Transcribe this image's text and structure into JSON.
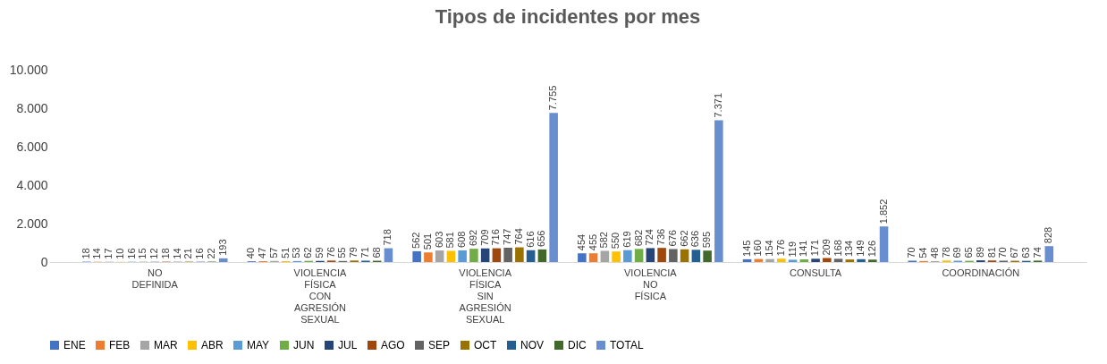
{
  "chart_data": {
    "type": "bar",
    "title": "Tipos de incidentes por mes",
    "categories": [
      "NO DEFINIDA",
      "VIOLENCIA FÍSICA CON AGRESIÓN SEXUAL",
      "VIOLENCIA FÍSICA SIN AGRESIÓN SEXUAL",
      "VIOLENCIA NO FÍSICA",
      "CONSULTA",
      "COORDINACIÓN"
    ],
    "series": [
      {
        "name": "ENE",
        "color": "#4472c4",
        "values": [
          18,
          40,
          562,
          454,
          145,
          70
        ],
        "value_labels": [
          "18",
          "40",
          "562",
          "454",
          "145",
          "70"
        ]
      },
      {
        "name": "FEB",
        "color": "#ed7d31",
        "values": [
          14,
          47,
          501,
          455,
          160,
          54
        ],
        "value_labels": [
          "14",
          "47",
          "501",
          "455",
          "160",
          "54"
        ]
      },
      {
        "name": "MAR",
        "color": "#a5a5a5",
        "values": [
          17,
          57,
          603,
          582,
          154,
          48
        ],
        "value_labels": [
          "17",
          "57",
          "603",
          "582",
          "154",
          "48"
        ]
      },
      {
        "name": "ABR",
        "color": "#ffc000",
        "values": [
          10,
          51,
          581,
          550,
          176,
          78
        ],
        "value_labels": [
          "10",
          "51",
          "581",
          "550",
          "176",
          "78"
        ]
      },
      {
        "name": "MAY",
        "color": "#5b9bd5",
        "values": [
          16,
          53,
          608,
          619,
          119,
          69
        ],
        "value_labels": [
          "16",
          "53",
          "608",
          "619",
          "119",
          "69"
        ]
      },
      {
        "name": "JUN",
        "color": "#70ad47",
        "values": [
          15,
          62,
          692,
          682,
          141,
          65
        ],
        "value_labels": [
          "15",
          "62",
          "692",
          "682",
          "141",
          "65"
        ]
      },
      {
        "name": "JUL",
        "color": "#264478",
        "values": [
          12,
          59,
          709,
          724,
          171,
          89
        ],
        "value_labels": [
          "12",
          "59",
          "709",
          "724",
          "171",
          "89"
        ]
      },
      {
        "name": "AGO",
        "color": "#9e480e",
        "values": [
          18,
          76,
          716,
          736,
          209,
          81
        ],
        "value_labels": [
          "18",
          "76",
          "716",
          "736",
          "209",
          "81"
        ]
      },
      {
        "name": "SEP",
        "color": "#636363",
        "values": [
          14,
          55,
          747,
          676,
          168,
          70
        ],
        "value_labels": [
          "14",
          "55",
          "747",
          "676",
          "168",
          "70"
        ]
      },
      {
        "name": "OCT",
        "color": "#997300",
        "values": [
          21,
          79,
          764,
          662,
          134,
          67
        ],
        "value_labels": [
          "21",
          "79",
          "764",
          "662",
          "134",
          "67"
        ]
      },
      {
        "name": "NOV",
        "color": "#255e91",
        "values": [
          16,
          71,
          616,
          636,
          149,
          63
        ],
        "value_labels": [
          "16",
          "71",
          "616",
          "636",
          "149",
          "63"
        ]
      },
      {
        "name": "DIC",
        "color": "#43682b",
        "values": [
          22,
          68,
          656,
          595,
          126,
          74
        ],
        "value_labels": [
          "22",
          "68",
          "656",
          "595",
          "126",
          "74"
        ]
      },
      {
        "name": "TOTAL",
        "color": "#698ed0",
        "values": [
          193,
          718,
          7755,
          7371,
          1852,
          828
        ],
        "value_labels": [
          "193",
          "718",
          "7.755",
          "7.371",
          "1.852",
          "828"
        ]
      }
    ],
    "ylim": [
      0,
      10000
    ],
    "yticks": [
      0,
      {
        "value": 2000,
        "label": "2.000"
      },
      {
        "value": 4000,
        "label": "4.000"
      },
      {
        "value": 6000,
        "label": "6.000"
      },
      {
        "value": 8000,
        "label": "8.000"
      },
      {
        "value": 10000,
        "label": "10.000"
      }
    ],
    "legend": "bottom"
  }
}
